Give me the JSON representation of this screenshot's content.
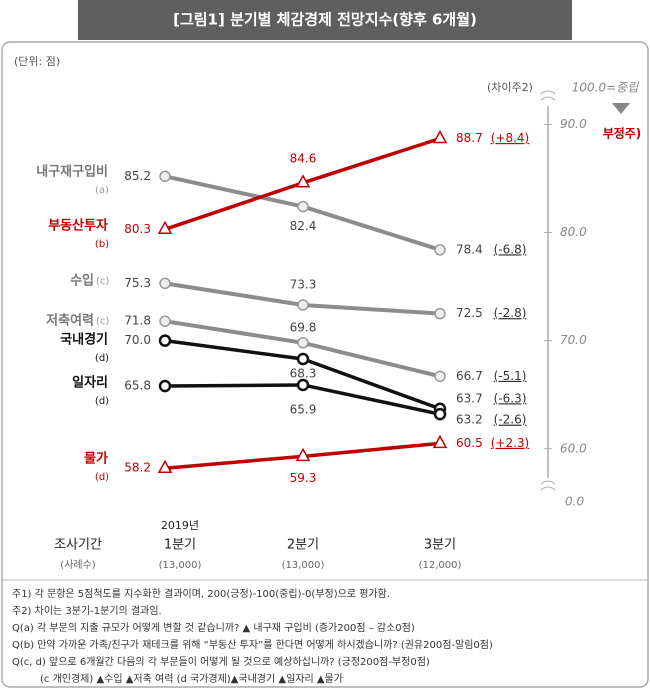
{
  "chart_data": {
    "type": "line",
    "title": "[그림1] 분기별 체감경제 전망지수(향후 6개월)",
    "unit_label": "(단위: 점)",
    "x_axis_label": "조사기간",
    "sample_label": "(사례수)",
    "year_label": "2019년",
    "categories": [
      "1분기",
      "2분기",
      "3분기"
    ],
    "sample_sizes": [
      "(13,000)",
      "(13,000)",
      "(12,000)"
    ],
    "difference_header": "(차이주2)",
    "axis_top_label": "100.0=중립",
    "axis_bottom_label": "0.0",
    "negative_label": "부정주)",
    "ylim": [
      56,
      93
    ],
    "yticks": [
      {
        "value": 60,
        "label": "60.0"
      },
      {
        "value": 70,
        "label": "70.0"
      },
      {
        "value": 80,
        "label": "80.0"
      },
      {
        "value": 90,
        "label": "90.0"
      }
    ],
    "series": [
      {
        "name": "내구재구입비",
        "sub": "(a)",
        "color": "#8c8c8c",
        "marker": "circle",
        "values": [
          85.2,
          82.4,
          78.4
        ],
        "value_labels": [
          "85.2",
          "82.4",
          "78.4"
        ],
        "difference_label": "(-6.8)"
      },
      {
        "name": "부동산투자",
        "sub": "(b)",
        "color": "#c00000",
        "marker": "triangle",
        "values": [
          80.3,
          84.6,
          88.7
        ],
        "value_labels": [
          "80.3",
          "84.6",
          "88.7"
        ],
        "difference_label": "(+8.4)"
      },
      {
        "name": "수입",
        "sub": "(c)",
        "color": "#8c8c8c",
        "marker": "circle",
        "values": [
          75.3,
          73.3,
          72.5
        ],
        "value_labels": [
          "75.3",
          "73.3",
          "72.5"
        ],
        "difference_label": "(-2.8)"
      },
      {
        "name": "저축여력",
        "sub": "(c)",
        "color": "#8c8c8c",
        "marker": "circle",
        "values": [
          71.8,
          69.8,
          66.7
        ],
        "value_labels": [
          "71.8",
          "69.8",
          "66.7"
        ],
        "difference_label": "(-5.1)"
      },
      {
        "name": "국내경기",
        "sub": "(d)",
        "color": "#111111",
        "marker": "circle",
        "values": [
          70.0,
          68.3,
          63.7
        ],
        "value_labels": [
          "70.0",
          "68.3",
          "63.7"
        ],
        "difference_label": "(-6.3)"
      },
      {
        "name": "일자리",
        "sub": "(d)",
        "color": "#111111",
        "marker": "circle",
        "values": [
          65.8,
          65.9,
          63.2
        ],
        "value_labels": [
          "65.8",
          "65.9",
          "63.2"
        ],
        "difference_label": "(-2.6)"
      },
      {
        "name": "물가",
        "sub": "(d)",
        "color": "#c00000",
        "marker": "triangle",
        "values": [
          58.2,
          59.3,
          60.5
        ],
        "value_labels": [
          "58.2",
          "59.3",
          "60.5"
        ],
        "difference_label": "(+2.3)"
      }
    ],
    "notes": [
      "주1) 각 문항은 5점척도를 지수화한 결과이며, 200(긍정)-100(중립)-0(부정)으로 평가함.",
      "주2) 차이는 3분기-1분기의 결과임.",
      "Q(a) 각 부문의 지출 규모가 어떻게 변할 것 같습니까?    ▲ 내구재 구입비 (증가200점 – 감소0점)",
      "Q(b) 만약 가까운 가족/친구가  재테크를 위해 “부동산 투자”를 한다면 어떻게 하시겠습니까? (권유200점-말림0점)",
      "Q(c, d) 앞으로 6개월간 다음의 각 부문들이 어떻게 될 것으로 예상하십니까? (긍정200점-부정0점)",
      "(c 개인경제) ▲수입 ▲저축 여력 (d 국가경제)▲국내경기 ▲일자리 ▲물가"
    ]
  }
}
